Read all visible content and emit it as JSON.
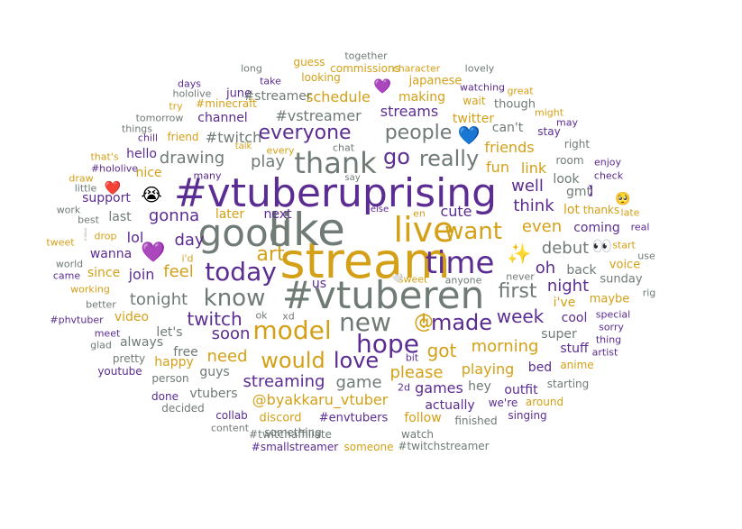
{
  "palette": {
    "purple": "#5b2c91",
    "gold": "#d4a017",
    "gray": "#6f7b74",
    "navy": "#2c2c74"
  },
  "words": [
    {
      "t": "stream",
      "c": "gold"
    },
    {
      "t": "like",
      "c": "gray"
    },
    {
      "t": "good",
      "c": "gray"
    },
    {
      "t": "#vtuberuprising",
      "c": "purple"
    },
    {
      "t": "#vtuberen",
      "c": "gray"
    },
    {
      "t": "live",
      "c": "gold"
    },
    {
      "t": "time",
      "c": "purple"
    },
    {
      "t": "thank",
      "c": "gray"
    },
    {
      "t": "today",
      "c": "purple"
    },
    {
      "t": "model",
      "c": "gold"
    },
    {
      "t": "new",
      "c": "gray"
    },
    {
      "t": "hope",
      "c": "purple"
    },
    {
      "t": "made",
      "c": "purple"
    },
    {
      "t": "want",
      "c": "gold"
    },
    {
      "t": "know",
      "c": "gray"
    },
    {
      "t": "love",
      "c": "purple"
    },
    {
      "t": "would",
      "c": "gold"
    },
    {
      "t": "go",
      "c": "purple"
    },
    {
      "t": "really",
      "c": "gray"
    },
    {
      "t": "everyone",
      "c": "purple"
    },
    {
      "t": "people",
      "c": "gray"
    },
    {
      "t": "art",
      "c": "gold"
    },
    {
      "t": "first",
      "c": "gray"
    },
    {
      "t": "got",
      "c": "gold"
    },
    {
      "t": "game",
      "c": "gray"
    },
    {
      "t": "please",
      "c": "gold"
    },
    {
      "t": "morning",
      "c": "gold"
    },
    {
      "t": "week",
      "c": "purple"
    },
    {
      "t": "streaming",
      "c": "purple"
    },
    {
      "t": "@byakkaru_vtuber",
      "c": "gold"
    },
    {
      "t": "playing",
      "c": "gold"
    },
    {
      "t": "oh",
      "c": "purple"
    },
    {
      "t": "even",
      "c": "gold"
    },
    {
      "t": "debut",
      "c": "gray"
    },
    {
      "t": "night",
      "c": "purple"
    },
    {
      "t": "think",
      "c": "purple"
    },
    {
      "t": "well",
      "c": "purple"
    },
    {
      "t": "need",
      "c": "gold"
    },
    {
      "t": "soon",
      "c": "purple"
    },
    {
      "t": "twitch",
      "c": "purple"
    },
    {
      "t": "tonight",
      "c": "gray"
    },
    {
      "t": "drawing",
      "c": "gray"
    },
    {
      "t": "play",
      "c": "gray"
    },
    {
      "t": "gonna",
      "c": "purple"
    },
    {
      "t": "day",
      "c": "purple"
    },
    {
      "t": "feel",
      "c": "gold"
    },
    {
      "t": "join",
      "c": "purple"
    },
    {
      "t": "#twitch",
      "c": "gray"
    },
    {
      "t": "#vstreamer",
      "c": "gray"
    },
    {
      "t": "schedule",
      "c": "gold"
    },
    {
      "t": "streams",
      "c": "purple"
    },
    {
      "t": "fun",
      "c": "gold"
    },
    {
      "t": "link",
      "c": "gold"
    },
    {
      "t": "friends",
      "c": "gold"
    },
    {
      "t": "cute",
      "c": "purple"
    },
    {
      "t": "next",
      "c": "purple"
    },
    {
      "t": "later",
      "c": "gold"
    },
    {
      "t": "channel",
      "c": "purple"
    },
    {
      "t": "making",
      "c": "gold"
    },
    {
      "t": "twitter",
      "c": "gold"
    },
    {
      "t": "can't",
      "c": "gray"
    },
    {
      "t": "coming",
      "c": "purple"
    },
    {
      "t": "lot",
      "c": "gold"
    },
    {
      "t": "i've",
      "c": "gold"
    },
    {
      "t": "back",
      "c": "gray"
    },
    {
      "t": "look",
      "c": "gray"
    },
    {
      "t": "gmt",
      "c": "gray"
    },
    {
      "t": "lol",
      "c": "purple"
    },
    {
      "t": "wanna",
      "c": "purple"
    },
    {
      "t": "nice",
      "c": "gold"
    },
    {
      "t": "hello",
      "c": "purple"
    },
    {
      "t": "support",
      "c": "purple"
    },
    {
      "t": "last",
      "c": "gray"
    },
    {
      "t": "since",
      "c": "gold"
    },
    {
      "t": "video",
      "c": "gold"
    },
    {
      "t": "always",
      "c": "gray"
    },
    {
      "t": "let's",
      "c": "gray"
    },
    {
      "t": "us",
      "c": "purple"
    },
    {
      "t": "games",
      "c": "purple"
    },
    {
      "t": "actually",
      "c": "purple"
    },
    {
      "t": "hey",
      "c": "gray"
    },
    {
      "t": "bed",
      "c": "purple"
    },
    {
      "t": "super",
      "c": "gray"
    },
    {
      "t": "stuff",
      "c": "purple"
    },
    {
      "t": "outfit",
      "c": "purple"
    },
    {
      "t": "cool",
      "c": "purple"
    },
    {
      "t": "maybe",
      "c": "gold"
    },
    {
      "t": "sunday",
      "c": "gray"
    },
    {
      "t": "voice",
      "c": "gold"
    },
    {
      "t": "guys",
      "c": "gray"
    },
    {
      "t": "happy",
      "c": "gold"
    },
    {
      "t": "free",
      "c": "gray"
    },
    {
      "t": "vtubers",
      "c": "gray"
    },
    {
      "t": "discord",
      "c": "gold"
    },
    {
      "t": "#envtubers",
      "c": "purple"
    },
    {
      "t": "follow",
      "c": "gold"
    },
    {
      "t": "finished",
      "c": "gray"
    },
    {
      "t": "we're",
      "c": "purple"
    },
    {
      "t": "around",
      "c": "gold"
    },
    {
      "t": "singing",
      "c": "purple"
    },
    {
      "t": "starting",
      "c": "gray"
    },
    {
      "t": "anime",
      "c": "gold"
    },
    {
      "t": "#twitchaffiliate",
      "c": "gray"
    },
    {
      "t": "watch",
      "c": "gray"
    },
    {
      "t": "something",
      "c": "gray"
    },
    {
      "t": "#smallstreamer",
      "c": "purple"
    },
    {
      "t": "someone",
      "c": "gold"
    },
    {
      "t": "#twitchstreamer",
      "c": "gray"
    },
    {
      "t": "collab",
      "c": "purple"
    },
    {
      "t": "content",
      "c": "gray"
    },
    {
      "t": "decided",
      "c": "gray"
    },
    {
      "t": "done",
      "c": "purple"
    },
    {
      "t": "person",
      "c": "gray"
    },
    {
      "t": "youtube",
      "c": "purple"
    },
    {
      "t": "pretty",
      "c": "gray"
    },
    {
      "t": "glad",
      "c": "gray"
    },
    {
      "t": "meet",
      "c": "purple"
    },
    {
      "t": "#phvtuber",
      "c": "purple"
    },
    {
      "t": "better",
      "c": "gray"
    },
    {
      "t": "working",
      "c": "gold"
    },
    {
      "t": "came",
      "c": "purple"
    },
    {
      "t": "world",
      "c": "gray"
    },
    {
      "t": "tweet",
      "c": "gold"
    },
    {
      "t": "drop",
      "c": "gold"
    },
    {
      "t": "best",
      "c": "gray"
    },
    {
      "t": "work",
      "c": "gray"
    },
    {
      "t": "little",
      "c": "gray"
    },
    {
      "t": "draw",
      "c": "gold"
    },
    {
      "t": "#hololive",
      "c": "purple"
    },
    {
      "t": "that's",
      "c": "gold"
    },
    {
      "t": "many",
      "c": "purple"
    },
    {
      "t": "chill",
      "c": "purple"
    },
    {
      "t": "things",
      "c": "gray"
    },
    {
      "t": "tomorrow",
      "c": "gray"
    },
    {
      "t": "friend",
      "c": "gold"
    },
    {
      "t": "try",
      "c": "gold"
    },
    {
      "t": "hololive",
      "c": "gray"
    },
    {
      "t": "days",
      "c": "purple"
    },
    {
      "t": "#minecraft",
      "c": "gold"
    },
    {
      "t": "june",
      "c": "purple"
    },
    {
      "t": "long",
      "c": "gray"
    },
    {
      "t": "#streamer",
      "c": "gray"
    },
    {
      "t": "take",
      "c": "purple"
    },
    {
      "t": "guess",
      "c": "gold"
    },
    {
      "t": "looking",
      "c": "gold"
    },
    {
      "t": "together",
      "c": "gray"
    },
    {
      "t": "commissions",
      "c": "gold"
    },
    {
      "t": "character",
      "c": "gold"
    },
    {
      "t": "lovely",
      "c": "gray"
    },
    {
      "t": "japanese",
      "c": "gold"
    },
    {
      "t": "watching",
      "c": "purple"
    },
    {
      "t": "wait",
      "c": "gold"
    },
    {
      "t": "great",
      "c": "gold"
    },
    {
      "t": "though",
      "c": "gray"
    },
    {
      "t": "might",
      "c": "gold"
    },
    {
      "t": "may",
      "c": "purple"
    },
    {
      "t": "stay",
      "c": "purple"
    },
    {
      "t": "right",
      "c": "gray"
    },
    {
      "t": "enjoy",
      "c": "purple"
    },
    {
      "t": "room",
      "c": "gray"
    },
    {
      "t": "check",
      "c": "purple"
    },
    {
      "t": "thanks",
      "c": "gold"
    },
    {
      "t": "late",
      "c": "gold"
    },
    {
      "t": "real",
      "c": "purple"
    },
    {
      "t": "start",
      "c": "gold"
    },
    {
      "t": "use",
      "c": "gray"
    },
    {
      "t": "rig",
      "c": "gray"
    },
    {
      "t": "special",
      "c": "purple"
    },
    {
      "t": "sorry",
      "c": "purple"
    },
    {
      "t": "thing",
      "c": "purple"
    },
    {
      "t": "artist",
      "c": "purple"
    },
    {
      "t": "talk",
      "c": "gold"
    },
    {
      "t": "every",
      "c": "gold"
    },
    {
      "t": "chat",
      "c": "gray"
    },
    {
      "t": "say",
      "c": "gray"
    },
    {
      "t": "else",
      "c": "purple"
    },
    {
      "t": "en",
      "c": "gold"
    },
    {
      "t": "bit",
      "c": "purple"
    },
    {
      "t": "2d",
      "c": "purple"
    },
    {
      "t": "i'd",
      "c": "gold"
    },
    {
      "t": "ok",
      "c": "gray"
    },
    {
      "t": "xd",
      "c": "gray"
    },
    {
      "t": "sweet",
      "c": "gold"
    },
    {
      "t": "anyone",
      "c": "gray"
    },
    {
      "t": "never",
      "c": "gray"
    },
    {
      "t": "@",
      "c": "gold"
    },
    {
      "t": "!",
      "c": "gold"
    },
    {
      "t": "❕",
      "c": "gold"
    },
    {
      "t": "】",
      "c": "purple"
    },
    {
      "t": "【",
      "c": "gold"
    }
  ],
  "emojis": [
    {
      "name": "purple-heart-icon",
      "g": "💜"
    },
    {
      "name": "purple-heart-icon",
      "g": "💜"
    },
    {
      "name": "blue-heart-icon",
      "g": "💙"
    },
    {
      "name": "red-heart-icon",
      "g": "❤️"
    },
    {
      "name": "white-heart-icon",
      "g": "🤍"
    },
    {
      "name": "sparkles-icon",
      "g": "✨"
    },
    {
      "name": "eyes-icon",
      "g": "👀"
    },
    {
      "name": "crying-face-icon",
      "g": "😭"
    },
    {
      "name": "pleading-face-icon",
      "g": "🥺"
    }
  ]
}
